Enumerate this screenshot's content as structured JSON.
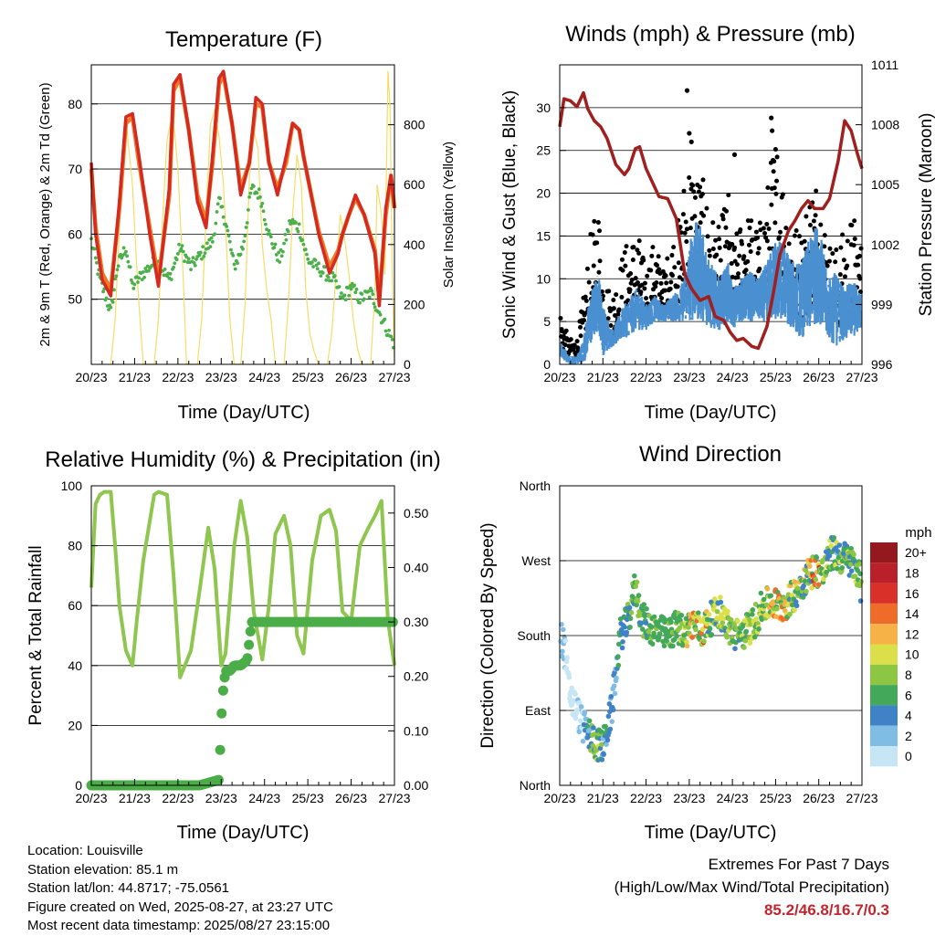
{
  "x_ticks": [
    "20/23",
    "21/23",
    "22/23",
    "23/23",
    "24/23",
    "25/23",
    "26/23",
    "27/23"
  ],
  "x_axis_label": "Time (Day/UTC)",
  "chart_data": [
    {
      "type": "line",
      "title": "Temperature (F)",
      "xlabel": "Time (Day/UTC)",
      "ylabel": "2m & 9m T (Red, Orange) & 2m Td (Green)",
      "y2label": "Solar Insolation (Yellow)",
      "ylim": [
        40,
        86
      ],
      "y_ticks": [
        "50",
        "60",
        "70",
        "80"
      ],
      "y2lim": [
        0,
        1000
      ],
      "y2_ticks": [
        "0",
        "200",
        "400",
        "600",
        "800"
      ],
      "xlim": [
        0,
        7
      ],
      "colors": {
        "t2m": "#d42a1f",
        "t9m": "#f07a26",
        "td": "#4cb04a",
        "solar": "#f5dd66"
      },
      "series": [
        {
          "key": "t2m",
          "x": [
            0,
            0.1,
            0.25,
            0.45,
            0.65,
            0.8,
            0.95,
            1.1,
            1.35,
            1.55,
            1.8,
            1.9,
            2.05,
            2.25,
            2.45,
            2.65,
            2.8,
            2.95,
            3.05,
            3.25,
            3.45,
            3.65,
            3.8,
            3.95,
            4.1,
            4.3,
            4.5,
            4.65,
            4.8,
            4.9,
            5.05,
            5.25,
            5.5,
            5.7,
            5.8,
            5.95,
            6.1,
            6.3,
            6.55,
            6.65,
            6.8,
            6.92,
            7.0
          ],
          "y": [
            71,
            60,
            53,
            50.5,
            65,
            78,
            78.5,
            72,
            60,
            52,
            67,
            83,
            84.5,
            76,
            65,
            61,
            72,
            84,
            85,
            77,
            66,
            71,
            81,
            80,
            71,
            66,
            72,
            77,
            76,
            72,
            67,
            60,
            54,
            57,
            60,
            63,
            66,
            63,
            57,
            49,
            64,
            69,
            64
          ]
        },
        {
          "key": "t9m",
          "x": [
            0,
            0.1,
            0.25,
            0.45,
            0.65,
            0.8,
            0.95,
            1.1,
            1.35,
            1.55,
            1.8,
            1.9,
            2.05,
            2.25,
            2.45,
            2.65,
            2.8,
            2.95,
            3.05,
            3.25,
            3.45,
            3.65,
            3.8,
            3.95,
            4.1,
            4.3,
            4.5,
            4.65,
            4.8,
            4.9,
            5.05,
            5.25,
            5.5,
            5.7,
            5.8,
            5.95,
            6.1,
            6.3,
            6.55,
            6.65,
            6.8,
            6.92,
            7.0
          ],
          "y": [
            70,
            61,
            54,
            51.5,
            64,
            77,
            78,
            71,
            61,
            53,
            66,
            82,
            84,
            76,
            66,
            62,
            71,
            83,
            84.5,
            77,
            67,
            71,
            80,
            79.5,
            71,
            67,
            71,
            77,
            76,
            72,
            67,
            60.5,
            55,
            57.5,
            60,
            63,
            65.5,
            63,
            57.5,
            50,
            63,
            69,
            64
          ]
        },
        {
          "key": "td",
          "x": [
            0,
            0.2,
            0.45,
            0.6,
            0.8,
            0.95,
            1.2,
            1.5,
            1.8,
            2.05,
            2.3,
            2.55,
            2.8,
            2.95,
            3.1,
            3.3,
            3.5,
            3.7,
            3.9,
            4.1,
            4.35,
            4.6,
            4.8,
            5.0,
            5.2,
            5.4,
            5.6,
            5.8,
            6.0,
            6.2,
            6.45,
            6.65,
            6.85,
            7.0
          ],
          "y": [
            59,
            53,
            48,
            55,
            58,
            52,
            54,
            56,
            53,
            58,
            55,
            57,
            59,
            65,
            62,
            55,
            58,
            67,
            66,
            60,
            56,
            62,
            61,
            56,
            55,
            54,
            53,
            50,
            52,
            50,
            51,
            48,
            45,
            43
          ]
        },
        {
          "key": "solar",
          "x": [
            0.45,
            0.55,
            0.65,
            0.72,
            0.8,
            0.88,
            0.95,
            1.02,
            1.1,
            1.2,
            1.3,
            1.45,
            1.55,
            1.65,
            1.75,
            1.85,
            1.92,
            2.0,
            2.05,
            2.12,
            2.2,
            2.3,
            2.45,
            2.55,
            2.65,
            2.75,
            2.85,
            2.95,
            3.05,
            3.12,
            3.2,
            3.3,
            3.45,
            3.55,
            3.65,
            3.75,
            3.85,
            3.95,
            4.05,
            4.15,
            4.25,
            4.45,
            4.55,
            4.65,
            4.75,
            4.85,
            4.95,
            5.05,
            5.15,
            5.25,
            5.45,
            5.55,
            5.65,
            5.75,
            5.85,
            5.95,
            6.05,
            6.15,
            6.25,
            6.45,
            6.55,
            6.6,
            6.7,
            6.78,
            6.85,
            6.9,
            6.95,
            7.0
          ],
          "y": [
            0,
            150,
            450,
            720,
            820,
            700,
            600,
            400,
            200,
            0,
            0,
            0,
            150,
            500,
            750,
            820,
            780,
            650,
            500,
            300,
            0,
            0,
            0,
            150,
            500,
            800,
            850,
            760,
            600,
            400,
            150,
            0,
            0,
            200,
            620,
            780,
            720,
            400,
            250,
            150,
            0,
            0,
            200,
            500,
            700,
            600,
            250,
            100,
            40,
            0,
            0,
            100,
            300,
            500,
            420,
            300,
            150,
            50,
            0,
            0,
            250,
            600,
            500,
            300,
            980,
            850,
            300,
            0
          ]
        }
      ]
    },
    {
      "type": "scatter",
      "title": "Winds (mph) & Pressure (mb)",
      "xlabel": "Time (Day/UTC)",
      "ylabel": "Sonic Wind & Gust (Blue, Black)",
      "y2label": "Station Pressure (Maroon)",
      "ylim": [
        0,
        35
      ],
      "y_ticks": [
        "0",
        "5",
        "10",
        "15",
        "20",
        "25",
        "30"
      ],
      "y2lim": [
        996,
        1011
      ],
      "y2_ticks": [
        "996",
        "999",
        "1002",
        "1005",
        "1008",
        "1011"
      ],
      "xlim": [
        0,
        7
      ],
      "colors": {
        "wind": "#4a90d0",
        "gust": "#000000",
        "pressure": "#a01f1f"
      },
      "wind_envelope": {
        "x": [
          0,
          0.2,
          0.4,
          0.55,
          0.7,
          0.9,
          1.0,
          1.2,
          1.5,
          1.8,
          2.0,
          2.2,
          2.4,
          2.6,
          2.8,
          2.95,
          3.1,
          3.3,
          3.5,
          3.7,
          3.9,
          4.0,
          4.2,
          4.4,
          4.6,
          4.8,
          5.0,
          5.2,
          5.4,
          5.6,
          5.8,
          6.0,
          6.2,
          6.4,
          6.6,
          6.8,
          7.0
        ],
        "low": [
          1,
          0,
          0,
          0,
          2,
          4,
          1,
          2,
          3,
          4,
          4,
          5,
          5,
          5,
          5,
          5,
          5,
          5,
          4,
          4,
          5,
          4,
          5,
          5,
          5,
          5,
          5,
          5,
          4,
          3,
          4,
          5,
          3,
          2,
          3,
          3,
          4
        ],
        "high": [
          3,
          1,
          1,
          3,
          8,
          11,
          7,
          4,
          7,
          9,
          7,
          8,
          7,
          8,
          9,
          12,
          17,
          16,
          12,
          10,
          12,
          9,
          10,
          11,
          10,
          12,
          15,
          14,
          12,
          12,
          15,
          17,
          10,
          11,
          9,
          10,
          8
        ]
      },
      "gust_envelope": {
        "x": [
          0,
          0.2,
          0.4,
          0.55,
          0.7,
          0.9,
          1.0,
          1.2,
          1.5,
          1.8,
          2.0,
          2.2,
          2.4,
          2.6,
          2.8,
          2.95,
          3.1,
          3.3,
          3.5,
          3.7,
          3.9,
          4.0,
          4.2,
          4.4,
          4.6,
          4.8,
          5.0,
          5.2,
          5.4,
          5.6,
          5.8,
          6.0,
          6.2,
          6.4,
          6.6,
          6.8,
          7.0
        ],
        "low": [
          2,
          1,
          1,
          1,
          4,
          8,
          3,
          3,
          5,
          6,
          6,
          7,
          7,
          7,
          7,
          8,
          9,
          9,
          7,
          6,
          7,
          6,
          8,
          8,
          7,
          8,
          9,
          8,
          6,
          5,
          6,
          8,
          5,
          4,
          5,
          5,
          6
        ],
        "high": [
          7,
          3,
          3,
          8,
          15,
          19,
          12,
          8,
          14,
          16,
          11,
          15,
          11,
          15,
          18,
          26,
          24,
          22,
          18,
          16,
          21,
          14,
          17,
          18,
          16,
          21,
          28,
          22,
          17,
          16,
          22,
          23,
          15,
          14,
          16,
          18,
          14
        ]
      },
      "pressure": {
        "x": [
          0,
          0.1,
          0.25,
          0.4,
          0.55,
          0.65,
          0.8,
          0.95,
          1.1,
          1.3,
          1.5,
          1.6,
          1.75,
          1.85,
          2.0,
          2.15,
          2.3,
          2.5,
          2.7,
          2.9,
          3.05,
          3.25,
          3.45,
          3.6,
          3.8,
          3.95,
          4.1,
          4.25,
          4.45,
          4.6,
          4.8,
          4.95,
          5.1,
          5.3,
          5.45,
          5.6,
          5.75,
          5.9,
          6.1,
          6.25,
          6.45,
          6.6,
          6.75,
          6.9,
          7.0
        ],
        "y": [
          1007.9,
          1009.3,
          1009.2,
          1008.9,
          1009.6,
          1008.8,
          1008.2,
          1007.9,
          1007.3,
          1006,
          1005.5,
          1005.8,
          1006.8,
          1006.9,
          1005.8,
          1005.1,
          1004.4,
          1004.3,
          1003.3,
          1000.5,
          999.8,
          999.2,
          999.4,
          998.4,
          998.2,
          997.6,
          997.2,
          997.3,
          996.9,
          996.8,
          997.9,
          999.6,
          1001.5,
          1002.7,
          1003.2,
          1003.8,
          1004.2,
          1003.8,
          1003.8,
          1004.3,
          1006.2,
          1008.2,
          1007.7,
          1006.5,
          1005.8
        ]
      },
      "gust_outliers": {
        "x": [
          2.95,
          3.0,
          4.05,
          4.9,
          4.92,
          3.05
        ],
        "y": [
          32,
          27,
          24.5,
          28.8,
          27.3,
          26
        ]
      }
    },
    {
      "type": "line",
      "title": "Relative Humidity (%) & Precipitation (in)",
      "xlabel": "Time (Day/UTC)",
      "ylabel": "Percent & Total Rainfall",
      "ylim": [
        0,
        100
      ],
      "y_ticks": [
        "0",
        "20",
        "40",
        "60",
        "80",
        "100"
      ],
      "y2lim": [
        0,
        0.55
      ],
      "y2_ticks": [
        "0.00",
        "0.10",
        "0.20",
        "0.30",
        "0.40",
        "0.50"
      ],
      "xlim": [
        0,
        7
      ],
      "colors": {
        "rh": "#8ec64f",
        "precip": "#4aad48"
      },
      "series": [
        {
          "key": "rh",
          "x": [
            0,
            0.1,
            0.2,
            0.3,
            0.45,
            0.55,
            0.65,
            0.8,
            0.95,
            1.05,
            1.2,
            1.45,
            1.55,
            1.75,
            1.9,
            2.05,
            2.3,
            2.5,
            2.7,
            2.85,
            3.0,
            3.1,
            3.3,
            3.45,
            3.6,
            3.75,
            3.95,
            4.1,
            4.25,
            4.45,
            4.6,
            4.75,
            4.9,
            5.1,
            5.3,
            5.5,
            5.65,
            5.8,
            6.0,
            6.2,
            6.4,
            6.55,
            6.7,
            6.85,
            7.0
          ],
          "y": [
            66,
            94,
            97,
            98,
            98,
            80,
            60,
            45,
            40,
            55,
            75,
            97,
            98,
            97,
            70,
            36,
            45,
            65,
            86,
            72,
            40,
            44,
            80,
            95,
            83,
            58,
            42,
            60,
            84,
            90,
            80,
            50,
            44,
            75,
            90,
            92,
            85,
            58,
            55,
            80,
            86,
            90,
            95,
            55,
            40
          ]
        },
        {
          "key": "precip",
          "x": [
            0,
            0.5,
            1.0,
            1.5,
            2.0,
            2.5,
            2.95,
            3.0,
            3.05,
            3.1,
            3.2,
            3.3,
            3.45,
            3.6,
            3.7,
            4.0,
            5.0,
            6.0,
            7.0
          ],
          "y": [
            0,
            0,
            0,
            0,
            0,
            0,
            0.01,
            0.12,
            0.18,
            0.21,
            0.21,
            0.22,
            0.22,
            0.23,
            0.3,
            0.3,
            0.3,
            0.3,
            0.3
          ]
        }
      ]
    },
    {
      "type": "scatter",
      "title": "Wind Direction",
      "xlabel": "Time (Day/UTC)",
      "ylabel": "Direction (Colored By Speed)",
      "y_ticks": [
        "North",
        "East",
        "South",
        "West",
        "North"
      ],
      "ylim": [
        0,
        360
      ],
      "xlim": [
        0,
        7
      ],
      "legend": {
        "title": "mph",
        "labels": [
          "0",
          "2",
          "4",
          "6",
          "8",
          "10",
          "12",
          "14",
          "16",
          "18",
          "20+"
        ],
        "colors": [
          "#c6e6f6",
          "#7fbde5",
          "#3f82c5",
          "#44a85a",
          "#8cc643",
          "#dbe04a",
          "#f6b247",
          "#ee6b2a",
          "#d9302a",
          "#b9202a",
          "#94191e"
        ]
      },
      "direction_track": {
        "x": [
          0,
          0.1,
          0.2,
          0.3,
          0.4,
          0.55,
          0.7,
          0.85,
          1.0,
          1.2,
          1.4,
          1.6,
          1.75,
          1.9,
          2.1,
          2.3,
          2.5,
          2.7,
          2.9,
          3.1,
          3.3,
          3.5,
          3.7,
          3.9,
          4.1,
          4.3,
          4.5,
          4.7,
          4.9,
          5.1,
          5.3,
          5.5,
          5.7,
          5.9,
          6.1,
          6.3,
          6.5,
          6.7,
          6.9,
          7.0
        ],
        "y": [
          180,
          170,
          120,
          100,
          90,
          70,
          60,
          50,
          45,
          90,
          180,
          200,
          240,
          200,
          190,
          185,
          180,
          190,
          185,
          195,
          185,
          200,
          210,
          190,
          180,
          185,
          195,
          215,
          220,
          215,
          220,
          235,
          250,
          260,
          255,
          280,
          275,
          270,
          260,
          230
        ]
      }
    }
  ],
  "footer": {
    "location": "Location: Louisville",
    "elevation": "Station elevation: 85.1 m",
    "latlon": "Station lat/lon: 44.8717; -75.0561",
    "created": "Figure created on Wed, 2025-08-27, at 23:27 UTC",
    "recent": "Most recent data timestamp: 2025/08/27 23:15:00"
  },
  "extremes": {
    "title": "Extremes For Past 7 Days",
    "subtitle": "(High/Low/Max Wind/Total Precipitation)",
    "values": "85.2/46.8/16.7/0.3"
  }
}
